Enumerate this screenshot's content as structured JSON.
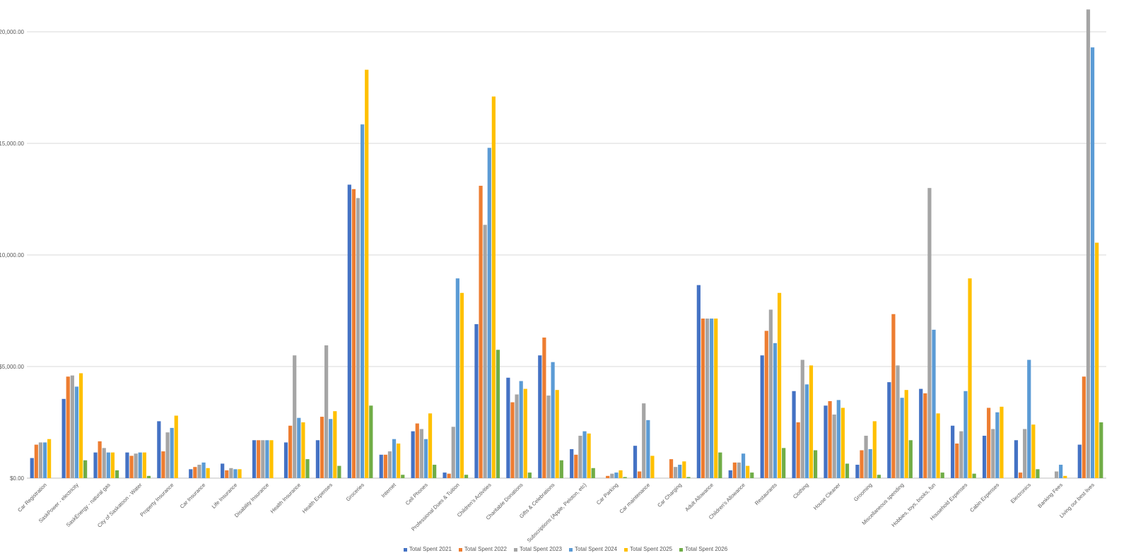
{
  "chart_data": {
    "type": "bar",
    "title": "",
    "xlabel": "",
    "ylabel": "",
    "ylim": [
      0,
      20000
    ],
    "yticks": [
      0,
      5000,
      10000,
      15000,
      20000
    ],
    "ytick_labels": [
      "$0.00",
      "$5,000.00",
      "$10,000.00",
      "$15,000.00",
      "$20,000.00"
    ],
    "grid": true,
    "legend_position": "bottom",
    "categories": [
      "Car Registration",
      "SaskPower - electricity",
      "SaskEnergy - natural gas",
      "City of Saskatoon - Water",
      "Property Insurance",
      "Car Insurance",
      "Life Insurance",
      "Disability Insurance",
      "Health Insurance",
      "Health Expenses",
      "Groceries",
      "Internet",
      "Cell Phones",
      "Professional Dues & Tuition",
      "Children's Activities",
      "Charitable Donations",
      "Gifts & Celebrations",
      "Subscriptions (Apple, Peloton, etc)",
      "Car Parking",
      "Car maintenance",
      "Car Charging",
      "Adult Allowance",
      "Children's Allowance",
      "Restaurants",
      "Clothing",
      "House Cleaner",
      "Grooming",
      "Miscellaneous spending",
      "Hobbies, toys, books, fun",
      "Household Expenses",
      "Cabin Expenses",
      "Electronics",
      "Banking Fees",
      "Living our best lives"
    ],
    "series": [
      {
        "name": "Total Spent 2021",
        "color": "#4472C4",
        "values": [
          900,
          3550,
          1150,
          1150,
          2550,
          400,
          650,
          1700,
          1600,
          1700,
          13150,
          1050,
          2100,
          250,
          6900,
          4500,
          5500,
          1300,
          0,
          1450,
          0,
          8650,
          350,
          5500,
          3900,
          3250,
          600,
          4300,
          4000,
          2350,
          1900,
          1700,
          0,
          1500
        ]
      },
      {
        "name": "Total Spent 2022",
        "color": "#ED7D31",
        "values": [
          1500,
          4550,
          1650,
          1000,
          1200,
          500,
          350,
          1700,
          2350,
          2750,
          12950,
          1050,
          2450,
          200,
          13100,
          3400,
          6300,
          1050,
          100,
          300,
          850,
          7150,
          700,
          6600,
          2500,
          3450,
          1250,
          7350,
          3800,
          1550,
          3150,
          250,
          0,
          4550
        ]
      },
      {
        "name": "Total Spent 2023",
        "color": "#A5A5A5",
        "values": [
          1600,
          4600,
          1350,
          1100,
          2050,
          600,
          450,
          1700,
          5500,
          5950,
          12550,
          1200,
          2200,
          2300,
          11350,
          3750,
          3700,
          1900,
          200,
          3350,
          500,
          7150,
          700,
          7550,
          5300,
          2850,
          1900,
          5050,
          13000,
          2100,
          2200,
          2200,
          300,
          21000
        ]
      },
      {
        "name": "Total Spent 2024",
        "color": "#5B9BD5",
        "values": [
          1600,
          4100,
          1150,
          1150,
          2250,
          700,
          400,
          1700,
          2700,
          2650,
          15850,
          1750,
          1750,
          8950,
          14800,
          4350,
          5200,
          2100,
          250,
          2600,
          600,
          7150,
          1100,
          6050,
          4200,
          3500,
          1300,
          3600,
          6650,
          3900,
          2950,
          5300,
          600,
          19300
        ]
      },
      {
        "name": "Total Spent 2025",
        "color": "#FFC000",
        "values": [
          1750,
          4700,
          1150,
          1150,
          2800,
          450,
          400,
          1700,
          2500,
          3000,
          18300,
          1550,
          2900,
          8300,
          17100,
          4000,
          3950,
          2000,
          350,
          1000,
          750,
          7150,
          550,
          8300,
          5050,
          3150,
          2550,
          3950,
          2900,
          8950,
          3200,
          2400,
          100,
          10550
        ]
      },
      {
        "name": "Total Spent 2026",
        "color": "#70AD47",
        "values": [
          0,
          800,
          350,
          100,
          0,
          0,
          0,
          0,
          850,
          550,
          3250,
          150,
          600,
          150,
          5750,
          250,
          800,
          450,
          50,
          0,
          50,
          1150,
          250,
          1350,
          1250,
          650,
          150,
          1700,
          250,
          200,
          0,
          400,
          0,
          2500
        ]
      }
    ]
  }
}
